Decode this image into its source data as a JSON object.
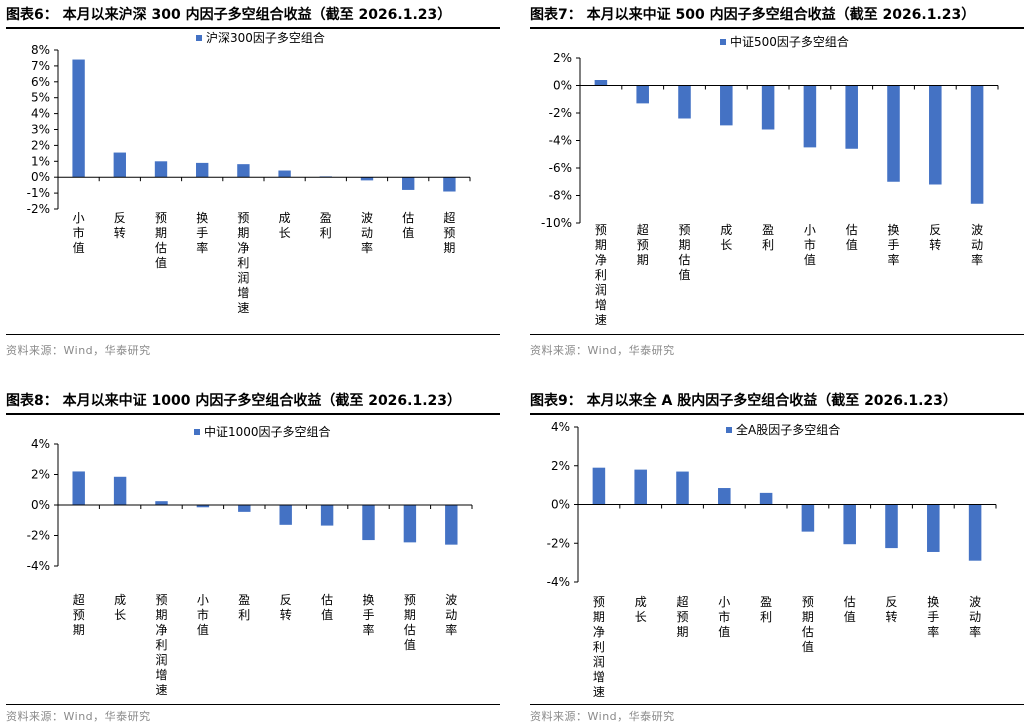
{
  "colors": {
    "bar": "#4472C4",
    "axis": "#000000",
    "source": "#8a8a8a"
  },
  "source_note": "资料来源：Wind，华泰研究",
  "chart_data": [
    {
      "type": "bar",
      "title": "图表6：  本月以来沪深 300 内因子多空组合收益（截至 2026.1.23）",
      "legend": "沪深300因子多空组合",
      "categories": [
        "小市值",
        "反转",
        "预期估值",
        "换手率",
        "预期净利润增速",
        "成长",
        "盈利",
        "波动率",
        "估值",
        "超预期"
      ],
      "values": [
        7.4,
        1.55,
        1.0,
        0.9,
        0.82,
        0.42,
        0.05,
        -0.2,
        -0.8,
        -0.9
      ],
      "ylim": [
        -2,
        8
      ],
      "ystep": 1,
      "yticks": [
        "-2%",
        "-1%",
        "0%",
        "1%",
        "2%",
        "3%",
        "4%",
        "5%",
        "6%",
        "7%",
        "8%"
      ]
    },
    {
      "type": "bar",
      "title": "图表7：  本月以来中证 500 内因子多空组合收益（截至 2026.1.23）",
      "legend": "中证500因子多空组合",
      "categories": [
        "预期净利润增速",
        "超预期",
        "预期估值",
        "成长",
        "盈利",
        "小市值",
        "估值",
        "换手率",
        "反转",
        "波动率"
      ],
      "values": [
        0.4,
        -1.3,
        -2.4,
        -2.9,
        -3.2,
        -4.5,
        -4.6,
        -7.0,
        -7.2,
        -8.6
      ],
      "ylim": [
        -10,
        2
      ],
      "ystep": 2,
      "yticks": [
        "-10%",
        "-8%",
        "-6%",
        "-4%",
        "-2%",
        "0%",
        "2%"
      ]
    },
    {
      "type": "bar",
      "title": "图表8：  本月以来中证 1000 内因子多空组合收益（截至 2026.1.23）",
      "legend": "中证1000因子多空组合",
      "categories": [
        "超预期",
        "成长",
        "预期净利润增速",
        "小市值",
        "盈利",
        "反转",
        "估值",
        "换手率",
        "预期估值",
        "波动率"
      ],
      "values": [
        2.2,
        1.85,
        0.25,
        -0.15,
        -0.45,
        -1.3,
        -1.35,
        -2.3,
        -2.45,
        -2.6
      ],
      "ylim": [
        -4,
        4
      ],
      "ystep": 2,
      "yticks": [
        "-4%",
        "-2%",
        "0%",
        "2%",
        "4%"
      ]
    },
    {
      "type": "bar",
      "title": "图表9：  本月以来全 A 股内因子多空组合收益（截至 2026.1.23）",
      "legend": "全A股因子多空组合",
      "categories": [
        "预期净利润增速",
        "成长",
        "超预期",
        "小市值",
        "盈利",
        "预期估值",
        "估值",
        "反转",
        "换手率",
        "波动率"
      ],
      "values": [
        1.9,
        1.8,
        1.7,
        0.85,
        0.6,
        -1.4,
        -2.05,
        -2.25,
        -2.45,
        -2.9
      ],
      "ylim": [
        -4,
        4
      ],
      "ystep": 2,
      "yticks": [
        "-4%",
        "-2%",
        "0%",
        "2%",
        "4%"
      ]
    }
  ]
}
